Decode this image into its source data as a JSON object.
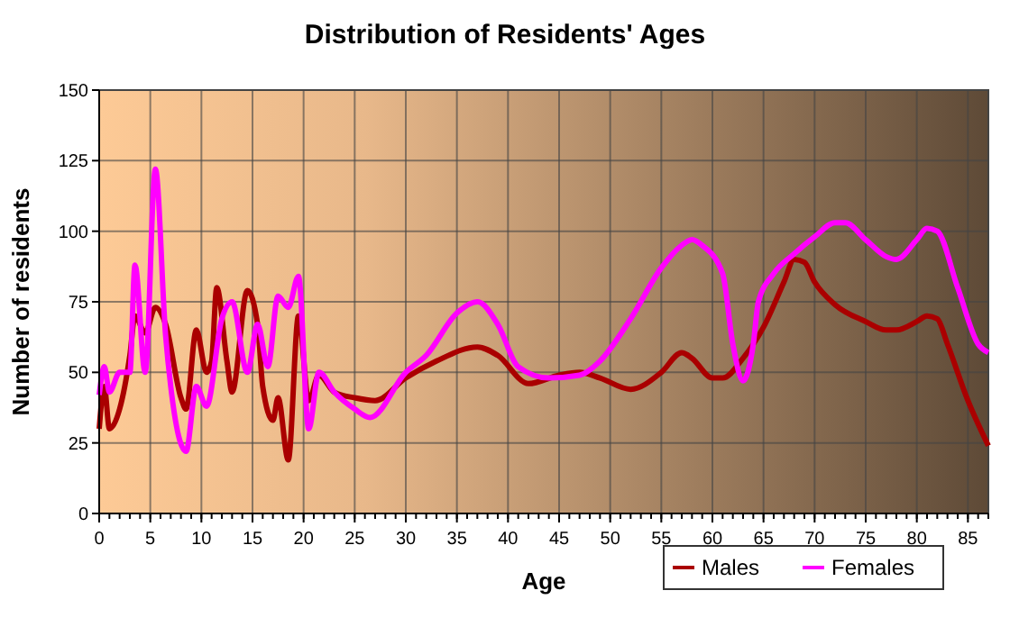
{
  "chart_data": {
    "type": "line",
    "title": "Distribution of Residents' Ages",
    "xlabel": "Age",
    "ylabel": "Number of residents",
    "xlim": [
      0,
      87
    ],
    "xticks": [
      0,
      5,
      10,
      15,
      20,
      25,
      30,
      35,
      40,
      45,
      50,
      55,
      60,
      65,
      70,
      75,
      80,
      85
    ],
    "ylim": [
      0,
      150
    ],
    "yticks": [
      0,
      25,
      50,
      75,
      100,
      125,
      150
    ],
    "grid": true,
    "legend": "bottom right",
    "marker": "none",
    "line_style": "solid",
    "series": [
      {
        "name": "Males",
        "color": "#aa0000",
        "x": [
          0,
          0.5,
          1,
          2,
          3,
          3.5,
          4.5,
          5.5,
          6.5,
          8,
          8.5,
          9.5,
          10.5,
          11,
          11.5,
          12.5,
          13,
          14.5,
          15.5,
          16,
          17,
          17.5,
          18.5,
          19.5,
          20.5,
          21.5,
          23,
          25,
          27,
          30,
          33,
          37,
          39,
          42,
          45,
          47,
          49,
          52,
          55,
          57,
          58,
          60,
          61,
          63,
          65,
          67,
          68,
          69,
          70,
          72,
          75,
          77,
          78,
          80,
          81,
          82,
          83,
          85,
          87
        ],
        "values": [
          30,
          45,
          30,
          37,
          56,
          70,
          64,
          73,
          67,
          41,
          37,
          65,
          50,
          54,
          80,
          54,
          43,
          79,
          67,
          45,
          33,
          41,
          19,
          70,
          40,
          49,
          43,
          41,
          40,
          48,
          54,
          59,
          56,
          46,
          49,
          50,
          48,
          44,
          50,
          57,
          55,
          48,
          48,
          55,
          66,
          82,
          90,
          89,
          82,
          74,
          68,
          65,
          65,
          68,
          70,
          69,
          60,
          40,
          24
        ]
      },
      {
        "name": "Females",
        "color": "#ff00ff",
        "x": [
          0,
          0.5,
          1,
          2,
          3,
          3.5,
          4.5,
          5.5,
          6.5,
          7,
          8.5,
          9.5,
          10.5,
          12,
          13,
          14.5,
          15.5,
          16.5,
          17.5,
          18.5,
          19.5,
          20.5,
          21.5,
          23,
          25,
          26.5,
          30,
          32,
          35,
          37,
          39,
          41,
          44,
          47,
          49,
          52,
          55,
          57,
          58,
          59,
          61,
          62,
          63,
          64,
          64.5,
          66,
          68,
          70,
          72,
          73,
          75,
          77,
          78,
          80,
          81,
          82,
          84,
          86,
          87
        ],
        "values": [
          42,
          52,
          43,
          50,
          50,
          88,
          50,
          122,
          63,
          45,
          22,
          45,
          38,
          69,
          75,
          50,
          67,
          52,
          77,
          73,
          84,
          30,
          50,
          43,
          37,
          34,
          50,
          56,
          71,
          75,
          67,
          52,
          48,
          49,
          54,
          69,
          87,
          95,
          97,
          95,
          85,
          60,
          47,
          60,
          75,
          85,
          92,
          98,
          103,
          103,
          97,
          91,
          90,
          97,
          101,
          100,
          80,
          60,
          57
        ]
      }
    ]
  }
}
